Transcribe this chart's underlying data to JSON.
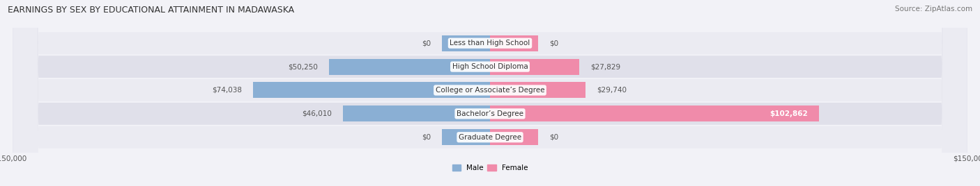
{
  "title": "EARNINGS BY SEX BY EDUCATIONAL ATTAINMENT IN MADAWASKA",
  "source": "Source: ZipAtlas.com",
  "categories": [
    "Less than High School",
    "High School Diploma",
    "College or Associate’s Degree",
    "Bachelor’s Degree",
    "Graduate Degree"
  ],
  "male_values": [
    0,
    50250,
    74038,
    46010,
    0
  ],
  "female_values": [
    0,
    27829,
    29740,
    102862,
    0
  ],
  "male_color": "#8aafd4",
  "female_color": "#f08baa",
  "label_color": "#555555",
  "row_bg_color_light": "#ebebf2",
  "row_bg_color_dark": "#e0e0ea",
  "fig_bg_color": "#f2f2f7",
  "x_max": 150000,
  "x_min": -150000,
  "label_male": "Male",
  "label_female": "Female",
  "title_fontsize": 9,
  "source_fontsize": 7.5,
  "axis_label_fontsize": 7.5,
  "bar_label_fontsize": 7.5,
  "category_fontsize": 7.5,
  "zero_bar_width": 15000
}
